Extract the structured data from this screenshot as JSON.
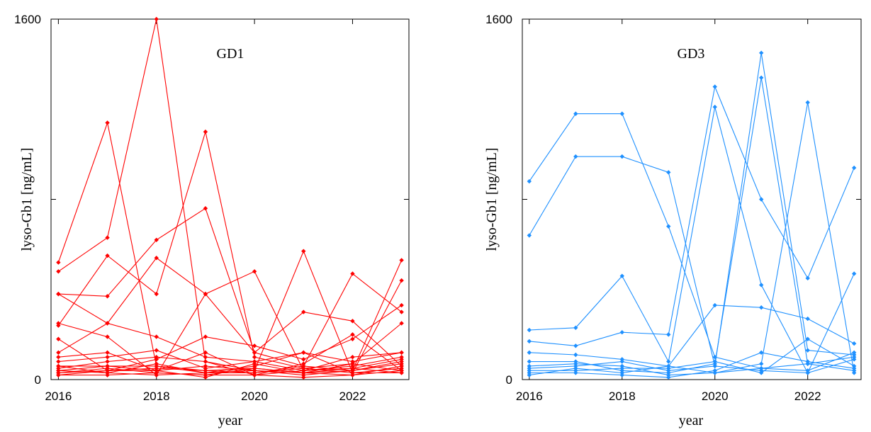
{
  "chart_data": [
    {
      "type": "line",
      "title": "GD1",
      "xlabel": "year",
      "ylabel": "lyso-Gb1 [ng/mL]",
      "xlim": [
        2016,
        2023
      ],
      "ylim": [
        0,
        1600
      ],
      "xticks": [
        "2016",
        "2018",
        "2020",
        "2022"
      ],
      "yticks": [
        "0",
        "1600"
      ],
      "color": "#ff0000",
      "x": [
        2016,
        2017,
        2018,
        2019,
        2020,
        2021,
        2022,
        2023
      ],
      "series": [
        {
          "values": [
            520,
            1140,
            60,
            40,
            50,
            30,
            40,
            530
          ]
        },
        {
          "values": [
            480,
            630,
            1600,
            80,
            40,
            570,
            30,
            440
          ]
        },
        {
          "values": [
            380,
            370,
            620,
            760,
            120,
            60,
            470,
            300
          ]
        },
        {
          "values": [
            240,
            550,
            380,
            1100,
            100,
            50,
            70,
            250
          ]
        },
        {
          "values": [
            380,
            250,
            540,
            380,
            120,
            300,
            260,
            60
          ]
        },
        {
          "values": [
            250,
            190,
            20,
            380,
            480,
            40,
            100,
            120
          ]
        },
        {
          "values": [
            180,
            40,
            90,
            190,
            150,
            90,
            180,
            330
          ]
        },
        {
          "values": [
            120,
            250,
            190,
            100,
            80,
            120,
            80,
            120
          ]
        },
        {
          "values": [
            100,
            120,
            40,
            120,
            20,
            70,
            200,
            40
          ]
        },
        {
          "values": [
            80,
            100,
            130,
            50,
            80,
            40,
            60,
            100
          ]
        },
        {
          "values": [
            60,
            60,
            60,
            30,
            60,
            120,
            30,
            30
          ]
        },
        {
          "values": [
            50,
            80,
            100,
            80,
            20,
            40,
            50,
            90
          ]
        },
        {
          "values": [
            40,
            30,
            20,
            30,
            40,
            20,
            40,
            80
          ]
        },
        {
          "values": [
            30,
            50,
            30,
            20,
            50,
            30,
            20,
            60
          ]
        },
        {
          "values": [
            20,
            40,
            50,
            40,
            30,
            60,
            40,
            70
          ]
        },
        {
          "values": [
            20,
            20,
            30,
            20,
            20,
            10,
            20,
            40
          ]
        },
        {
          "values": [
            40,
            60,
            40,
            60,
            40,
            30,
            50,
            30
          ]
        },
        {
          "values": [
            60,
            30,
            70,
            30,
            30,
            50,
            30,
            50
          ]
        },
        {
          "values": [
            30,
            40,
            40,
            10,
            70,
            30,
            70,
            40
          ]
        }
      ]
    },
    {
      "type": "line",
      "title": "GD3",
      "xlabel": "year",
      "ylabel": "lyso-Gb1 [ng/mL]",
      "xlim": [
        2016,
        2023
      ],
      "ylim": [
        0,
        1600
      ],
      "xticks": [
        "2016",
        "2018",
        "2020",
        "2022"
      ],
      "yticks": [
        "0",
        "1600"
      ],
      "color": "#1e90ff",
      "x": [
        2016,
        2017,
        2018,
        2019,
        2020,
        2021,
        2022,
        2023
      ],
      "series": [
        {
          "values": [
            880,
            1180,
            1180,
            680,
            100,
            50,
            40,
            120
          ]
        },
        {
          "values": [
            640,
            990,
            990,
            920,
            60,
            1450,
            130,
            110
          ]
        },
        {
          "values": [
            220,
            230,
            460,
            80,
            1210,
            420,
            30,
            470
          ]
        },
        {
          "values": [
            170,
            150,
            210,
            200,
            1300,
            800,
            450,
            940
          ]
        },
        {
          "values": [
            120,
            110,
            90,
            60,
            330,
            320,
            270,
            160
          ]
        },
        {
          "values": [
            80,
            80,
            40,
            30,
            70,
            1340,
            70,
            100
          ]
        },
        {
          "values": [
            60,
            70,
            60,
            20,
            30,
            70,
            1230,
            30
          ]
        },
        {
          "values": [
            40,
            40,
            50,
            50,
            80,
            30,
            180,
            60
          ]
        },
        {
          "values": [
            30,
            30,
            20,
            10,
            40,
            120,
            80,
            50
          ]
        },
        {
          "values": [
            20,
            50,
            30,
            60,
            30,
            50,
            70,
            40
          ]
        },
        {
          "values": [
            50,
            60,
            80,
            40,
            60,
            40,
            30,
            90
          ]
        }
      ]
    }
  ]
}
